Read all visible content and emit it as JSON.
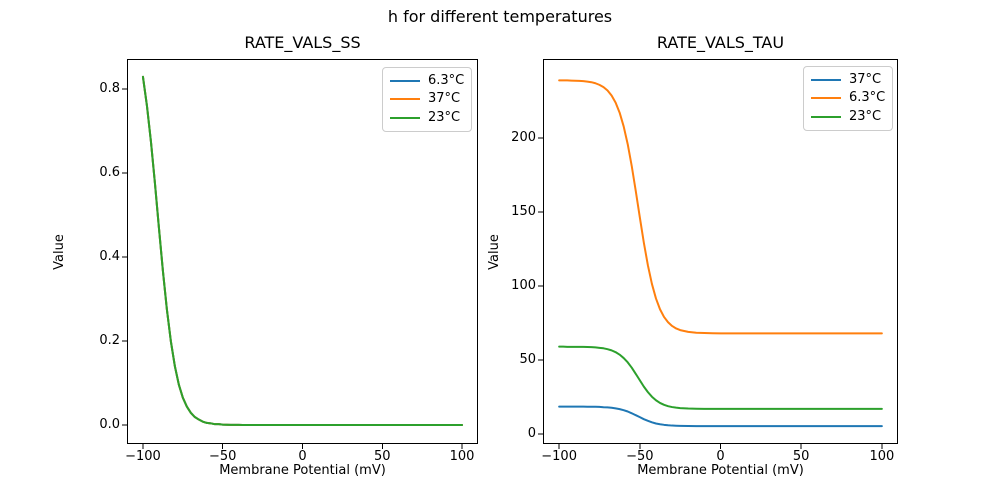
{
  "figure": {
    "suptitle": "h for different temperatures"
  },
  "chart_data": [
    {
      "type": "line",
      "title": "RATE_VALS_SS",
      "xlabel": "Membrane Potential (mV)",
      "ylabel": "Value",
      "xlim": [
        -110,
        110
      ],
      "ylim": [
        -0.0452,
        0.8714
      ],
      "grid": false,
      "xticks": {
        "values": [
          -100,
          -50,
          0,
          50,
          100
        ],
        "labels": [
          "−100",
          "−50",
          "0",
          "50",
          "100"
        ]
      },
      "yticks": {
        "values": [
          0.0,
          0.2,
          0.4,
          0.6,
          0.8
        ],
        "labels": [
          "0.0",
          "0.2",
          "0.4",
          "0.6",
          "0.8"
        ]
      },
      "legend": {
        "position": "upper right",
        "entries": [
          {
            "label": "6.3°C",
            "color": "#1f77b4"
          },
          {
            "label": "37°C",
            "color": "#ff7f0e"
          },
          {
            "label": "23°C",
            "color": "#2ca02c"
          }
        ]
      },
      "x": [
        -100,
        -97.5,
        -95,
        -92.5,
        -90,
        -87.5,
        -85,
        -82.5,
        -80,
        -77.5,
        -75,
        -72.5,
        -70,
        -67.5,
        -65,
        -62.5,
        -60,
        -57.5,
        -55,
        -52.5,
        -50,
        -47.5,
        -45,
        -42.5,
        -40,
        -37.5,
        -35,
        -32.5,
        -30,
        -27.5,
        -25,
        -20,
        -15,
        -10,
        -5,
        0,
        10,
        20,
        30,
        40,
        50,
        60,
        70,
        80,
        90,
        100
      ],
      "series": [
        {
          "name": "6.3°C",
          "color": "#1f77b4",
          "values": [
            0.829,
            0.76,
            0.675,
            0.576,
            0.47,
            0.367,
            0.275,
            0.199,
            0.14,
            0.096,
            0.065,
            0.044,
            0.029,
            0.019,
            0.013,
            0.008,
            0.005,
            0.004,
            0.002,
            0.002,
            0.001,
            0.0007,
            0.0004,
            0.0003,
            0.0002,
            0.0001,
            0.0001,
            0.0001,
            0,
            0,
            0,
            0,
            0,
            0,
            0,
            0,
            0,
            0,
            0,
            0,
            0,
            0,
            0,
            0,
            0,
            0
          ]
        },
        {
          "name": "37°C",
          "color": "#ff7f0e",
          "values": [
            0.829,
            0.76,
            0.675,
            0.576,
            0.47,
            0.367,
            0.275,
            0.199,
            0.14,
            0.096,
            0.065,
            0.044,
            0.029,
            0.019,
            0.013,
            0.008,
            0.005,
            0.004,
            0.002,
            0.002,
            0.001,
            0.0007,
            0.0004,
            0.0003,
            0.0002,
            0.0001,
            0.0001,
            0.0001,
            0,
            0,
            0,
            0,
            0,
            0,
            0,
            0,
            0,
            0,
            0,
            0,
            0,
            0,
            0,
            0,
            0,
            0
          ]
        },
        {
          "name": "23°C",
          "color": "#2ca02c",
          "values": [
            0.829,
            0.76,
            0.675,
            0.576,
            0.47,
            0.367,
            0.275,
            0.199,
            0.14,
            0.096,
            0.065,
            0.044,
            0.029,
            0.019,
            0.013,
            0.008,
            0.005,
            0.004,
            0.002,
            0.002,
            0.001,
            0.0007,
            0.0004,
            0.0003,
            0.0002,
            0.0001,
            0.0001,
            0.0001,
            0,
            0,
            0,
            0,
            0,
            0,
            0,
            0,
            0,
            0,
            0,
            0,
            0,
            0,
            0,
            0,
            0,
            0
          ]
        }
      ]
    },
    {
      "type": "line",
      "title": "RATE_VALS_TAU",
      "xlabel": "Membrane Potential (mV)",
      "ylabel": "Value",
      "xlim": [
        -110,
        110
      ],
      "ylim": [
        -6.76,
        253.38
      ],
      "grid": false,
      "xticks": {
        "values": [
          -100,
          -50,
          0,
          50,
          100
        ],
        "labels": [
          "−100",
          "−50",
          "0",
          "50",
          "100"
        ]
      },
      "yticks": {
        "values": [
          0,
          50,
          100,
          150,
          200
        ],
        "labels": [
          "0",
          "50",
          "100",
          "150",
          "200"
        ]
      },
      "legend": {
        "position": "upper right",
        "entries": [
          {
            "label": "37°C",
            "color": "#1f77b4"
          },
          {
            "label": "6.3°C",
            "color": "#ff7f0e"
          },
          {
            "label": "23°C",
            "color": "#2ca02c"
          }
        ]
      },
      "x": [
        -100,
        -97.5,
        -95,
        -92.5,
        -90,
        -87.5,
        -85,
        -82.5,
        -80,
        -77.5,
        -75,
        -72.5,
        -70,
        -67.5,
        -65,
        -62.5,
        -60,
        -57.5,
        -55,
        -52.5,
        -50,
        -47.5,
        -45,
        -42.5,
        -40,
        -37.5,
        -35,
        -32.5,
        -30,
        -27.5,
        -25,
        -20,
        -15,
        -10,
        -5,
        0,
        10,
        20,
        30,
        40,
        50,
        60,
        70,
        80,
        90,
        100
      ],
      "series": [
        {
          "name": "37°C",
          "color": "#1f77b4",
          "values": [
            18.5,
            18.5,
            18.5,
            18.5,
            18.5,
            18.5,
            18.5,
            18.4,
            18.4,
            18.4,
            18.3,
            18.1,
            18.0,
            17.7,
            17.3,
            16.8,
            16.1,
            15.2,
            14.0,
            12.7,
            11.4,
            10.0,
            8.9,
            7.9,
            7.1,
            6.6,
            6.2,
            5.9,
            5.7,
            5.6,
            5.5,
            5.4,
            5.3,
            5.3,
            5.3,
            5.3,
            5.3,
            5.3,
            5.3,
            5.3,
            5.3,
            5.3,
            5.3,
            5.3,
            5.3,
            5.3
          ]
        },
        {
          "name": "6.3°C",
          "color": "#ff7f0e",
          "values": [
            238.9,
            238.9,
            238.9,
            238.8,
            238.7,
            238.6,
            238.4,
            238.1,
            237.7,
            237.0,
            235.9,
            234.4,
            232.1,
            228.7,
            223.9,
            217.1,
            207.8,
            195.8,
            181.0,
            164.1,
            146.4,
            129.2,
            114.0,
            101.4,
            91.6,
            84.3,
            79.1,
            75.5,
            73.0,
            71.3,
            70.2,
            69.0,
            68.4,
            68.2,
            68.1,
            68.0,
            68.0,
            68.0,
            68.0,
            68.0,
            68.0,
            68.0,
            68.0,
            68.0,
            68.0,
            68.0
          ]
        },
        {
          "name": "23°C",
          "color": "#2ca02c",
          "values": [
            59.0,
            59.0,
            58.9,
            58.9,
            58.9,
            58.9,
            58.9,
            58.8,
            58.7,
            58.5,
            58.2,
            57.9,
            57.3,
            56.5,
            55.3,
            53.6,
            51.3,
            48.4,
            44.8,
            40.6,
            36.3,
            32.0,
            28.3,
            25.2,
            22.8,
            21.0,
            19.7,
            18.8,
            18.2,
            17.8,
            17.5,
            17.2,
            17.1,
            17.0,
            17.0,
            17.0,
            17.0,
            17.0,
            17.0,
            17.0,
            17.0,
            17.0,
            17.0,
            17.0,
            17.0,
            17.0
          ]
        }
      ]
    }
  ]
}
